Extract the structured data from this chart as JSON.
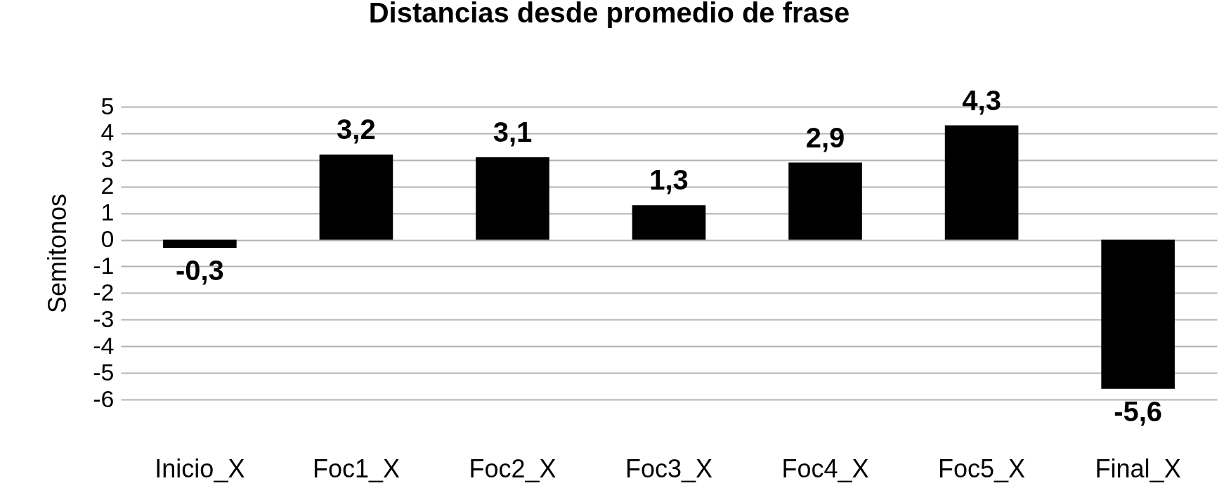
{
  "chart_data": {
    "type": "bar",
    "title": "Distancias desde promedio de frase",
    "ylabel": "Semitonos",
    "categories": [
      "Inicio_X",
      "Foc1_X",
      "Foc2_X",
      "Foc3_X",
      "Foc4_X",
      "Foc5_X",
      "Final_X"
    ],
    "values": [
      -0.3,
      3.2,
      3.1,
      1.3,
      2.9,
      4.3,
      -5.6
    ],
    "value_labels": [
      "-0,3",
      "3,2",
      "3,1",
      "1,3",
      "2,9",
      "4,3",
      "-5,6"
    ],
    "color": "#000000",
    "ylim": [
      -6,
      5
    ],
    "yticks": [
      -6,
      -5,
      -4,
      -3,
      -2,
      -1,
      0,
      1,
      2,
      3,
      4,
      5
    ],
    "grid": "y"
  }
}
